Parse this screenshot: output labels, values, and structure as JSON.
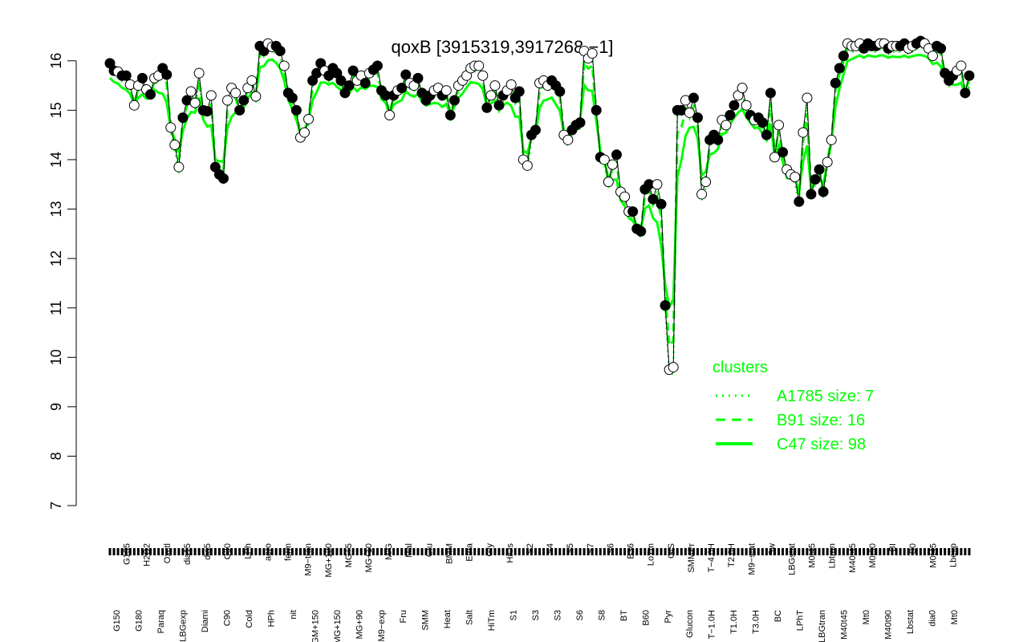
{
  "chart_data": {
    "type": "line",
    "title": "qoxB [3915319,3917268,−1]",
    "xlabel": "",
    "ylabel": "",
    "ylim": [
      7,
      16.5
    ],
    "yticks": [
      7,
      8,
      9,
      10,
      11,
      12,
      13,
      14,
      15,
      16
    ],
    "grid": false,
    "legend_position": "bottom-right",
    "series_color": "#00ff00",
    "legend": {
      "title": "clusters",
      "entries": [
        {
          "label": "A1785 size: 7",
          "style": "dotted"
        },
        {
          "label": "B91 size: 16",
          "style": "dashed"
        },
        {
          "label": "C47 size: 98",
          "style": "solid"
        }
      ]
    },
    "x_labels_upper": [
      "G135",
      "H2O2",
      "Oxctl",
      "dia15",
      "dia5",
      "C30",
      "LPh",
      "aero",
      "ferm",
      "M9−tran",
      "MG+120",
      "MG+5",
      "MG+10",
      "M/G",
      "Mal",
      "Glu",
      "BMM",
      "Etha",
      "Gly",
      "HiOs",
      "S2",
      "S4",
      "S5",
      "S7",
      "S6",
      "B36",
      "LoTm",
      "G/S",
      "SMMPr",
      "T−4.0H",
      "T2.0H",
      "M9−stat",
      "Sw",
      "LBGstat",
      "M0t45",
      "Lbtran",
      "M40t45",
      "M0t90",
      "BI",
      "S0",
      "M0t45",
      "Lbexp"
    ],
    "x_labels_lower": [
      "G150",
      "G180",
      "Paraq",
      "LBGexp",
      "Diami",
      "C90",
      "Cold",
      "HPh",
      "nit",
      "GM+150",
      "MG+150",
      "MG+90",
      "M9−exp",
      "Fru",
      "SMM",
      "Heat",
      "Salt",
      "HiTm",
      "S1",
      "S3",
      "S3",
      "S6",
      "S8",
      "BT",
      "B60",
      "Pyr",
      "Glucon",
      "T−1.0H",
      "T1.0H",
      "T3.0H",
      "BC",
      "LPhT",
      "LBGtran",
      "M40t45",
      "Mt0",
      "M40t90",
      "Lbstat",
      "dia0",
      "Mt0"
    ],
    "points": [
      {
        "x": 1,
        "y": 15.95,
        "filled": true
      },
      {
        "x": 2,
        "y": 15.8,
        "filled": true
      },
      {
        "x": 3,
        "y": 15.78,
        "filled": false
      },
      {
        "x": 4,
        "y": 15.7,
        "filled": true
      },
      {
        "x": 5,
        "y": 15.7,
        "filled": true
      },
      {
        "x": 6,
        "y": 15.52,
        "filled": false
      },
      {
        "x": 7,
        "y": 15.1,
        "filled": false
      },
      {
        "x": 8,
        "y": 15.5,
        "filled": false
      },
      {
        "x": 9,
        "y": 15.65,
        "filled": true
      },
      {
        "x": 10,
        "y": 15.42,
        "filled": false
      },
      {
        "x": 11,
        "y": 15.32,
        "filled": true
      },
      {
        "x": 12,
        "y": 15.65,
        "filled": false
      },
      {
        "x": 13,
        "y": 15.7,
        "filled": false
      },
      {
        "x": 14,
        "y": 15.85,
        "filled": true
      },
      {
        "x": 15,
        "y": 15.72,
        "filled": true
      },
      {
        "x": 16,
        "y": 14.65,
        "filled": false
      },
      {
        "x": 17,
        "y": 14.3,
        "filled": false
      },
      {
        "x": 18,
        "y": 13.85,
        "filled": false
      },
      {
        "x": 19,
        "y": 14.85,
        "filled": true
      },
      {
        "x": 20,
        "y": 15.2,
        "filled": true
      },
      {
        "x": 21,
        "y": 15.38,
        "filled": false
      },
      {
        "x": 22,
        "y": 15.15,
        "filled": false
      },
      {
        "x": 23,
        "y": 15.75,
        "filled": false
      },
      {
        "x": 24,
        "y": 15.0,
        "filled": true
      },
      {
        "x": 25,
        "y": 14.98,
        "filled": true
      },
      {
        "x": 26,
        "y": 15.3,
        "filled": false
      },
      {
        "x": 27,
        "y": 13.85,
        "filled": true
      },
      {
        "x": 28,
        "y": 13.7,
        "filled": true
      },
      {
        "x": 29,
        "y": 13.62,
        "filled": true
      },
      {
        "x": 30,
        "y": 15.2,
        "filled": false
      },
      {
        "x": 31,
        "y": 15.45,
        "filled": false
      },
      {
        "x": 32,
        "y": 15.35,
        "filled": false
      },
      {
        "x": 33,
        "y": 15.0,
        "filled": true
      },
      {
        "x": 34,
        "y": 15.2,
        "filled": true
      },
      {
        "x": 35,
        "y": 15.45,
        "filled": false
      },
      {
        "x": 36,
        "y": 15.6,
        "filled": false
      },
      {
        "x": 37,
        "y": 15.28,
        "filled": false
      },
      {
        "x": 38,
        "y": 16.3,
        "filled": true
      },
      {
        "x": 39,
        "y": 16.2,
        "filled": true
      },
      {
        "x": 40,
        "y": 16.35,
        "filled": false
      },
      {
        "x": 41,
        "y": 16.28,
        "filled": false
      },
      {
        "x": 42,
        "y": 16.3,
        "filled": true
      },
      {
        "x": 43,
        "y": 16.2,
        "filled": true
      },
      {
        "x": 44,
        "y": 15.9,
        "filled": false
      },
      {
        "x": 45,
        "y": 15.35,
        "filled": true
      },
      {
        "x": 46,
        "y": 15.25,
        "filled": true
      },
      {
        "x": 47,
        "y": 15.0,
        "filled": true
      },
      {
        "x": 48,
        "y": 14.45,
        "filled": false
      },
      {
        "x": 49,
        "y": 14.55,
        "filled": false
      },
      {
        "x": 50,
        "y": 14.82,
        "filled": false
      },
      {
        "x": 51,
        "y": 15.6,
        "filled": true
      },
      {
        "x": 52,
        "y": 15.75,
        "filled": true
      },
      {
        "x": 53,
        "y": 15.95,
        "filled": true
      },
      {
        "x": 54,
        "y": 15.8,
        "filled": false
      },
      {
        "x": 55,
        "y": 15.7,
        "filled": true
      },
      {
        "x": 56,
        "y": 15.85,
        "filled": true
      },
      {
        "x": 57,
        "y": 15.75,
        "filled": true
      },
      {
        "x": 58,
        "y": 15.6,
        "filled": true
      },
      {
        "x": 59,
        "y": 15.35,
        "filled": true
      },
      {
        "x": 60,
        "y": 15.5,
        "filled": true
      },
      {
        "x": 61,
        "y": 15.8,
        "filled": true
      },
      {
        "x": 62,
        "y": 15.6,
        "filled": false
      },
      {
        "x": 63,
        "y": 15.7,
        "filled": false
      },
      {
        "x": 64,
        "y": 15.55,
        "filled": true
      },
      {
        "x": 65,
        "y": 15.75,
        "filled": false
      },
      {
        "x": 66,
        "y": 15.82,
        "filled": true
      },
      {
        "x": 67,
        "y": 15.9,
        "filled": true
      },
      {
        "x": 68,
        "y": 15.4,
        "filled": true
      },
      {
        "x": 69,
        "y": 15.3,
        "filled": true
      },
      {
        "x": 70,
        "y": 14.9,
        "filled": false
      },
      {
        "x": 71,
        "y": 15.3,
        "filled": true
      },
      {
        "x": 72,
        "y": 15.4,
        "filled": false
      },
      {
        "x": 73,
        "y": 15.45,
        "filled": true
      },
      {
        "x": 74,
        "y": 15.72,
        "filled": true
      },
      {
        "x": 75,
        "y": 15.55,
        "filled": false
      },
      {
        "x": 76,
        "y": 15.5,
        "filled": false
      },
      {
        "x": 77,
        "y": 15.65,
        "filled": true
      },
      {
        "x": 78,
        "y": 15.35,
        "filled": true
      },
      {
        "x": 79,
        "y": 15.2,
        "filled": true
      },
      {
        "x": 80,
        "y": 15.3,
        "filled": true
      },
      {
        "x": 81,
        "y": 15.4,
        "filled": false
      },
      {
        "x": 82,
        "y": 15.45,
        "filled": false
      },
      {
        "x": 83,
        "y": 15.3,
        "filled": true
      },
      {
        "x": 84,
        "y": 15.4,
        "filled": false
      },
      {
        "x": 85,
        "y": 14.9,
        "filled": true
      },
      {
        "x": 86,
        "y": 15.2,
        "filled": true
      },
      {
        "x": 87,
        "y": 15.5,
        "filled": false
      },
      {
        "x": 88,
        "y": 15.6,
        "filled": false
      },
      {
        "x": 89,
        "y": 15.7,
        "filled": false
      },
      {
        "x": 90,
        "y": 15.85,
        "filled": false
      },
      {
        "x": 91,
        "y": 15.9,
        "filled": false
      },
      {
        "x": 92,
        "y": 15.9,
        "filled": false
      },
      {
        "x": 93,
        "y": 15.7,
        "filled": false
      },
      {
        "x": 94,
        "y": 15.05,
        "filled": true
      },
      {
        "x": 95,
        "y": 15.3,
        "filled": false
      },
      {
        "x": 96,
        "y": 15.5,
        "filled": false
      },
      {
        "x": 97,
        "y": 15.1,
        "filled": true
      },
      {
        "x": 98,
        "y": 15.3,
        "filled": true
      },
      {
        "x": 99,
        "y": 15.4,
        "filled": false
      },
      {
        "x": 100,
        "y": 15.52,
        "filled": false
      },
      {
        "x": 101,
        "y": 15.25,
        "filled": true
      },
      {
        "x": 102,
        "y": 15.38,
        "filled": true
      },
      {
        "x": 103,
        "y": 14.0,
        "filled": false
      },
      {
        "x": 104,
        "y": 13.88,
        "filled": false
      },
      {
        "x": 105,
        "y": 14.5,
        "filled": true
      },
      {
        "x": 106,
        "y": 14.6,
        "filled": true
      },
      {
        "x": 107,
        "y": 15.55,
        "filled": false
      },
      {
        "x": 108,
        "y": 15.6,
        "filled": false
      },
      {
        "x": 109,
        "y": 15.5,
        "filled": false
      },
      {
        "x": 110,
        "y": 15.6,
        "filled": true
      },
      {
        "x": 111,
        "y": 15.5,
        "filled": true
      },
      {
        "x": 112,
        "y": 15.38,
        "filled": true
      },
      {
        "x": 113,
        "y": 14.5,
        "filled": false
      },
      {
        "x": 114,
        "y": 14.4,
        "filled": false
      },
      {
        "x": 115,
        "y": 14.6,
        "filled": true
      },
      {
        "x": 116,
        "y": 14.7,
        "filled": true
      },
      {
        "x": 117,
        "y": 14.75,
        "filled": true
      },
      {
        "x": 118,
        "y": 16.2,
        "filled": false
      },
      {
        "x": 119,
        "y": 16.05,
        "filled": false
      },
      {
        "x": 120,
        "y": 16.15,
        "filled": false
      },
      {
        "x": 121,
        "y": 15.0,
        "filled": true
      },
      {
        "x": 122,
        "y": 14.05,
        "filled": true
      },
      {
        "x": 123,
        "y": 14.0,
        "filled": false
      },
      {
        "x": 124,
        "y": 13.55,
        "filled": false
      },
      {
        "x": 125,
        "y": 13.9,
        "filled": false
      },
      {
        "x": 126,
        "y": 14.1,
        "filled": true
      },
      {
        "x": 127,
        "y": 13.35,
        "filled": false
      },
      {
        "x": 128,
        "y": 13.25,
        "filled": false
      },
      {
        "x": 129,
        "y": 12.95,
        "filled": false
      },
      {
        "x": 130,
        "y": 12.95,
        "filled": true
      },
      {
        "x": 131,
        "y": 12.6,
        "filled": true
      },
      {
        "x": 132,
        "y": 12.55,
        "filled": true
      },
      {
        "x": 133,
        "y": 13.4,
        "filled": true
      },
      {
        "x": 134,
        "y": 13.5,
        "filled": true
      },
      {
        "x": 135,
        "y": 13.2,
        "filled": true
      },
      {
        "x": 136,
        "y": 13.5,
        "filled": false
      },
      {
        "x": 137,
        "y": 13.1,
        "filled": true
      },
      {
        "x": 138,
        "y": 11.05,
        "filled": true
      },
      {
        "x": 139,
        "y": 9.75,
        "filled": false
      },
      {
        "x": 140,
        "y": 9.8,
        "filled": false
      },
      {
        "x": 141,
        "y": 15.0,
        "filled": true
      },
      {
        "x": 142,
        "y": 15.0,
        "filled": true
      },
      {
        "x": 143,
        "y": 15.2,
        "filled": false
      },
      {
        "x": 144,
        "y": 14.95,
        "filled": false
      },
      {
        "x": 145,
        "y": 15.25,
        "filled": true
      },
      {
        "x": 146,
        "y": 14.85,
        "filled": true
      },
      {
        "x": 147,
        "y": 13.3,
        "filled": false
      },
      {
        "x": 148,
        "y": 13.55,
        "filled": false
      },
      {
        "x": 149,
        "y": 14.4,
        "filled": true
      },
      {
        "x": 150,
        "y": 14.5,
        "filled": true
      },
      {
        "x": 151,
        "y": 14.4,
        "filled": true
      },
      {
        "x": 152,
        "y": 14.8,
        "filled": false
      },
      {
        "x": 153,
        "y": 14.7,
        "filled": false
      },
      {
        "x": 154,
        "y": 14.9,
        "filled": true
      },
      {
        "x": 155,
        "y": 15.1,
        "filled": true
      },
      {
        "x": 156,
        "y": 15.3,
        "filled": false
      },
      {
        "x": 157,
        "y": 15.45,
        "filled": false
      },
      {
        "x": 158,
        "y": 15.1,
        "filled": false
      },
      {
        "x": 159,
        "y": 14.9,
        "filled": true
      },
      {
        "x": 160,
        "y": 14.8,
        "filled": false
      },
      {
        "x": 161,
        "y": 14.85,
        "filled": true
      },
      {
        "x": 162,
        "y": 14.75,
        "filled": true
      },
      {
        "x": 163,
        "y": 14.5,
        "filled": true
      },
      {
        "x": 164,
        "y": 15.35,
        "filled": true
      },
      {
        "x": 165,
        "y": 14.05,
        "filled": false
      },
      {
        "x": 166,
        "y": 14.7,
        "filled": false
      },
      {
        "x": 167,
        "y": 14.15,
        "filled": true
      },
      {
        "x": 168,
        "y": 13.8,
        "filled": false
      },
      {
        "x": 169,
        "y": 13.7,
        "filled": false
      },
      {
        "x": 170,
        "y": 13.65,
        "filled": false
      },
      {
        "x": 171,
        "y": 13.15,
        "filled": true
      },
      {
        "x": 172,
        "y": 14.55,
        "filled": false
      },
      {
        "x": 173,
        "y": 15.25,
        "filled": false
      },
      {
        "x": 174,
        "y": 13.3,
        "filled": true
      },
      {
        "x": 175,
        "y": 13.6,
        "filled": true
      },
      {
        "x": 176,
        "y": 13.8,
        "filled": true
      },
      {
        "x": 177,
        "y": 13.35,
        "filled": true
      },
      {
        "x": 178,
        "y": 13.95,
        "filled": false
      },
      {
        "x": 179,
        "y": 14.4,
        "filled": false
      },
      {
        "x": 180,
        "y": 15.55,
        "filled": true
      },
      {
        "x": 181,
        "y": 15.85,
        "filled": true
      },
      {
        "x": 182,
        "y": 16.1,
        "filled": true
      },
      {
        "x": 183,
        "y": 16.35,
        "filled": false
      },
      {
        "x": 184,
        "y": 16.3,
        "filled": false
      },
      {
        "x": 185,
        "y": 16.3,
        "filled": false
      },
      {
        "x": 186,
        "y": 16.35,
        "filled": false
      },
      {
        "x": 187,
        "y": 16.25,
        "filled": true
      },
      {
        "x": 188,
        "y": 16.35,
        "filled": true
      },
      {
        "x": 189,
        "y": 16.3,
        "filled": true
      },
      {
        "x": 190,
        "y": 16.3,
        "filled": true
      },
      {
        "x": 191,
        "y": 16.35,
        "filled": false
      },
      {
        "x": 192,
        "y": 16.35,
        "filled": false
      },
      {
        "x": 193,
        "y": 16.25,
        "filled": true
      },
      {
        "x": 194,
        "y": 16.3,
        "filled": false
      },
      {
        "x": 195,
        "y": 16.3,
        "filled": false
      },
      {
        "x": 196,
        "y": 16.3,
        "filled": true
      },
      {
        "x": 197,
        "y": 16.35,
        "filled": true
      },
      {
        "x": 198,
        "y": 16.25,
        "filled": false
      },
      {
        "x": 199,
        "y": 16.3,
        "filled": false
      },
      {
        "x": 200,
        "y": 16.35,
        "filled": true
      },
      {
        "x": 201,
        "y": 16.4,
        "filled": true
      },
      {
        "x": 202,
        "y": 16.35,
        "filled": false
      },
      {
        "x": 203,
        "y": 16.25,
        "filled": false
      },
      {
        "x": 204,
        "y": 16.1,
        "filled": false
      },
      {
        "x": 205,
        "y": 16.3,
        "filled": true
      },
      {
        "x": 206,
        "y": 16.25,
        "filled": true
      },
      {
        "x": 207,
        "y": 15.75,
        "filled": true
      },
      {
        "x": 208,
        "y": 15.6,
        "filled": true
      },
      {
        "x": 209,
        "y": 15.7,
        "filled": true
      },
      {
        "x": 210,
        "y": 15.8,
        "filled": false
      },
      {
        "x": 211,
        "y": 15.9,
        "filled": false
      },
      {
        "x": 212,
        "y": 15.35,
        "filled": true
      },
      {
        "x": 213,
        "y": 15.7,
        "filled": true
      }
    ]
  }
}
